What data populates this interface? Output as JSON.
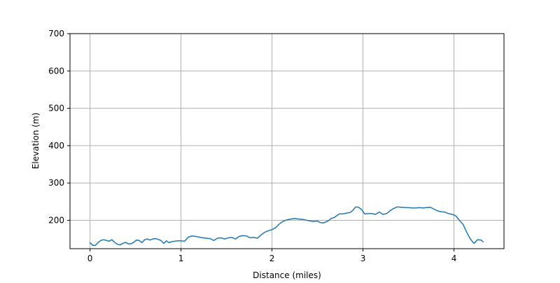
{
  "chart_data": {
    "type": "line",
    "title": "",
    "xlabel": "Distance (miles)",
    "ylabel": "Elevation (m)",
    "xlim": [
      -0.22,
      4.55
    ],
    "ylim": [
      124,
      700
    ],
    "grid": true,
    "legend": "none",
    "x_ticks": [
      0,
      1,
      2,
      3,
      4
    ],
    "y_ticks": [
      200,
      300,
      400,
      500,
      600,
      700
    ],
    "x_tick_labels": [
      "0",
      "1",
      "2",
      "3",
      "4"
    ],
    "y_tick_labels": [
      "200",
      "300",
      "400",
      "500",
      "600",
      "700"
    ],
    "series": [
      {
        "name": "",
        "color": "#1f77b4",
        "x": [
          0.0,
          0.03,
          0.06,
          0.09,
          0.12,
          0.15,
          0.18,
          0.21,
          0.24,
          0.27,
          0.3,
          0.33,
          0.36,
          0.39,
          0.42,
          0.45,
          0.48,
          0.51,
          0.54,
          0.57,
          0.6,
          0.63,
          0.66,
          0.69,
          0.72,
          0.75,
          0.78,
          0.81,
          0.84,
          0.87,
          0.9,
          0.93,
          0.96,
          1.0,
          1.04,
          1.08,
          1.12,
          1.16,
          1.2,
          1.24,
          1.28,
          1.32,
          1.36,
          1.4,
          1.44,
          1.48,
          1.52,
          1.56,
          1.6,
          1.64,
          1.68,
          1.72,
          1.76,
          1.8,
          1.84,
          1.88,
          1.92,
          1.96,
          2.0,
          2.04,
          2.08,
          2.12,
          2.16,
          2.2,
          2.25,
          2.3,
          2.35,
          2.4,
          2.45,
          2.5,
          2.53,
          2.56,
          2.59,
          2.62,
          2.65,
          2.68,
          2.71,
          2.74,
          2.77,
          2.8,
          2.83,
          2.86,
          2.89,
          2.92,
          2.95,
          2.98,
          3.02,
          3.06,
          3.1,
          3.14,
          3.18,
          3.22,
          3.26,
          3.3,
          3.34,
          3.38,
          3.42,
          3.46,
          3.5,
          3.54,
          3.58,
          3.62,
          3.66,
          3.7,
          3.74,
          3.78,
          3.82,
          3.86,
          3.9,
          3.94,
          3.98,
          4.02,
          4.06,
          4.1,
          4.14,
          4.18,
          4.22,
          4.26,
          4.3,
          4.32
        ],
        "values": [
          140,
          133,
          133,
          141,
          146,
          148,
          146,
          144,
          148,
          141,
          136,
          134,
          138,
          141,
          137,
          137,
          141,
          147,
          146,
          140,
          148,
          150,
          147,
          150,
          151,
          149,
          146,
          138,
          145,
          140,
          143,
          144,
          145,
          145,
          144,
          155,
          158,
          157,
          155,
          153,
          152,
          151,
          146,
          152,
          153,
          150,
          153,
          154,
          150,
          157,
          159,
          158,
          153,
          154,
          152,
          161,
          168,
          172,
          175,
          180,
          190,
          197,
          201,
          203,
          205,
          203,
          202,
          199,
          197,
          198,
          194,
          193,
          195,
          199,
          205,
          207,
          212,
          217,
          217,
          218,
          220,
          221,
          227,
          236,
          235,
          230,
          217,
          218,
          218,
          216,
          222,
          216,
          218,
          226,
          232,
          236,
          235,
          234,
          234,
          233,
          233,
          234,
          233,
          234,
          235,
          230,
          225,
          223,
          222,
          218,
          216,
          212,
          200,
          189,
          168,
          150,
          138,
          148,
          147,
          142
        ]
      }
    ]
  }
}
